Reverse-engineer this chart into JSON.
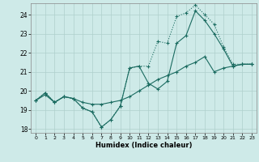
{
  "title": "",
  "xlabel": "Humidex (Indice chaleur)",
  "bg_color": "#ceeae8",
  "grid_color": "#afd0cc",
  "line_color": "#1a6b60",
  "xlim": [
    -0.5,
    23.5
  ],
  "ylim": [
    17.8,
    24.6
  ],
  "yticks": [
    18,
    19,
    20,
    21,
    22,
    23,
    24
  ],
  "xticks": [
    0,
    1,
    2,
    3,
    4,
    5,
    6,
    7,
    8,
    9,
    10,
    11,
    12,
    13,
    14,
    15,
    16,
    17,
    18,
    19,
    20,
    21,
    22,
    23
  ],
  "s1": [
    19.5,
    19.9,
    19.4,
    19.7,
    19.6,
    19.1,
    18.9,
    18.1,
    18.5,
    19.2,
    21.2,
    21.3,
    20.4,
    20.1,
    20.5,
    22.5,
    22.9,
    24.2,
    23.7,
    23.0,
    22.2,
    21.3,
    21.4,
    21.4
  ],
  "s2": [
    19.5,
    19.9,
    19.4,
    19.7,
    19.6,
    19.1,
    18.9,
    18.1,
    18.5,
    19.2,
    21.2,
    21.3,
    21.3,
    22.6,
    22.5,
    23.9,
    24.1,
    24.5,
    24.0,
    23.5,
    22.3,
    21.4,
    21.4,
    21.4
  ],
  "s3": [
    19.5,
    19.8,
    19.4,
    19.7,
    19.6,
    19.4,
    19.3,
    19.3,
    19.4,
    19.5,
    19.7,
    20.0,
    20.3,
    20.6,
    20.8,
    21.0,
    21.3,
    21.5,
    21.8,
    21.0,
    21.2,
    21.3,
    21.4,
    21.4
  ]
}
